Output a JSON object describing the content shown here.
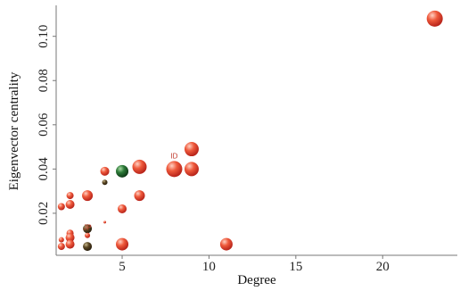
{
  "chart_data": {
    "type": "scatter",
    "xlabel": "Degree",
    "ylabel": "Eigenvector centrality",
    "xlim": [
      1.2,
      24.3
    ],
    "ylim": [
      0.001,
      0.114
    ],
    "xticks": [
      5,
      10,
      15,
      20
    ],
    "yticks": [
      0.02,
      0.04,
      0.06,
      0.08,
      0.1
    ],
    "ytick_labels": [
      "0.02",
      "0.04",
      "0.06",
      "0.08",
      "0.10"
    ],
    "grid": false,
    "colors": {
      "red": "#e2402a",
      "dark_olive": "#4a3a1c",
      "dark_green": "#1f5a2a"
    },
    "points": [
      {
        "x": 23,
        "y": 0.108,
        "size": 9,
        "color": "red"
      },
      {
        "x": 9,
        "y": 0.049,
        "size": 8,
        "color": "red"
      },
      {
        "x": 8,
        "y": 0.04,
        "size": 9,
        "color": "red",
        "label": "ID"
      },
      {
        "x": 9,
        "y": 0.04,
        "size": 8,
        "color": "red"
      },
      {
        "x": 6,
        "y": 0.041,
        "size": 8,
        "color": "red"
      },
      {
        "x": 5,
        "y": 0.039,
        "size": 7,
        "color": "dark_green"
      },
      {
        "x": 4,
        "y": 0.039,
        "size": 5,
        "color": "red"
      },
      {
        "x": 4,
        "y": 0.034,
        "size": 3,
        "color": "dark_olive"
      },
      {
        "x": 6,
        "y": 0.028,
        "size": 6,
        "color": "red"
      },
      {
        "x": 3,
        "y": 0.028,
        "size": 6,
        "color": "red"
      },
      {
        "x": 2,
        "y": 0.028,
        "size": 4,
        "color": "red"
      },
      {
        "x": 2,
        "y": 0.024,
        "size": 5,
        "color": "red"
      },
      {
        "x": 1.5,
        "y": 0.023,
        "size": 4,
        "color": "red"
      },
      {
        "x": 5,
        "y": 0.022,
        "size": 5,
        "color": "red"
      },
      {
        "x": 4,
        "y": 0.016,
        "size": 1.5,
        "color": "red"
      },
      {
        "x": 3,
        "y": 0.013,
        "size": 5,
        "color": "dark_olive"
      },
      {
        "x": 2,
        "y": 0.011,
        "size": 4,
        "color": "red"
      },
      {
        "x": 3,
        "y": 0.01,
        "size": 3,
        "color": "red",
        "label": "JP"
      },
      {
        "x": 2,
        "y": 0.009,
        "size": 5,
        "color": "red"
      },
      {
        "x": 1.5,
        "y": 0.008,
        "size": 3,
        "color": "red"
      },
      {
        "x": 2,
        "y": 0.006,
        "size": 5,
        "color": "red"
      },
      {
        "x": 3,
        "y": 0.005,
        "size": 5,
        "color": "dark_olive"
      },
      {
        "x": 1.5,
        "y": 0.005,
        "size": 4,
        "color": "red"
      },
      {
        "x": 5,
        "y": 0.006,
        "size": 7,
        "color": "red"
      },
      {
        "x": 11,
        "y": 0.006,
        "size": 7,
        "color": "red"
      }
    ]
  }
}
